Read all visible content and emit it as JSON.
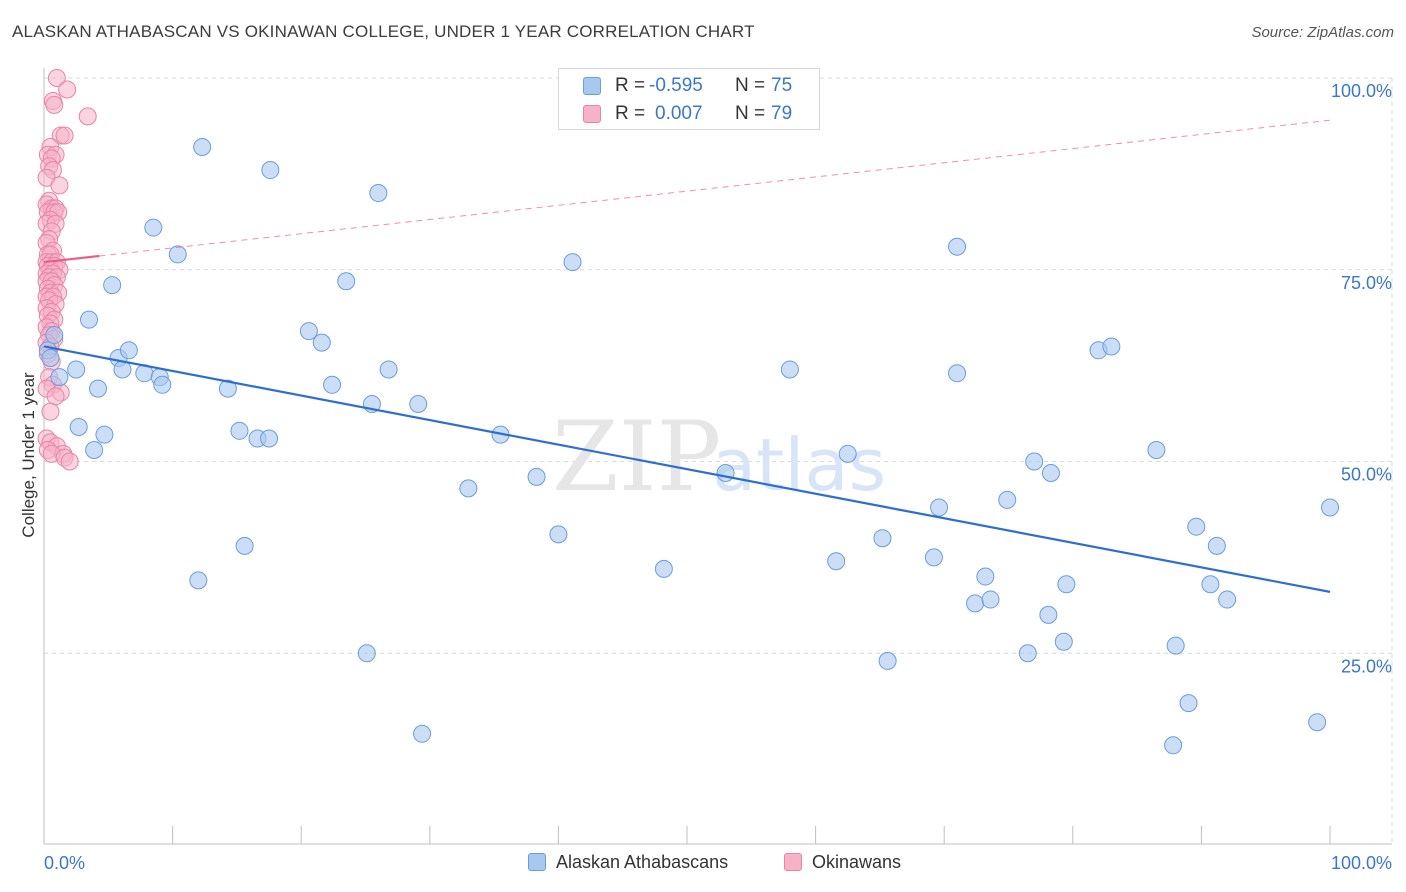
{
  "header": {
    "title": "ALASKAN ATHABASCAN VS OKINAWAN COLLEGE, UNDER 1 YEAR CORRELATION CHART",
    "source": "Source: ZipAtlas.com"
  },
  "legend": {
    "rows": [
      {
        "r_label": "R =",
        "r_value": "-0.595",
        "n_label": "N =",
        "n_value": "75"
      },
      {
        "r_label": "R =",
        "r_value": "0.007",
        "n_label": "N =",
        "n_value": "79"
      }
    ]
  },
  "watermark": {
    "zip": "ZIP",
    "atlas": "atlas"
  },
  "colors": {
    "blue_fill": "#a9c8f0",
    "blue_stroke": "#6b9ddc",
    "blue_line": "#2d6fcf",
    "pink_fill": "#f6b3c8",
    "pink_stroke": "#e884a5",
    "pink_line": "#e8608a",
    "axis_text": "#3b77c9",
    "grid": "#d9d9d9"
  },
  "chart_data": {
    "type": "scatter",
    "title": "ALASKAN ATHABASCAN VS OKINAWAN COLLEGE, UNDER 1 YEAR CORRELATION CHART",
    "xlabel": "",
    "ylabel": "College, Under 1 year",
    "xlim": [
      0,
      100
    ],
    "ylim": [
      0,
      102
    ],
    "x_tick_labels": [
      "0.0%",
      "100.0%"
    ],
    "y_ticks": [
      25,
      50,
      75,
      100
    ],
    "y_tick_labels": [
      "25.0%",
      "50.0%",
      "75.0%",
      "100.0%"
    ],
    "grid": true,
    "series": [
      {
        "name": "Alaskan Athabascans",
        "color": "#a9c8f0",
        "r": -0.595,
        "n": 75,
        "trend": {
          "x": [
            0,
            100
          ],
          "y": [
            65,
            33
          ]
        },
        "points": [
          [
            0.3,
            64.5
          ],
          [
            0.5,
            63.5
          ],
          [
            0.8,
            66.5
          ],
          [
            1.2,
            61
          ],
          [
            2.5,
            62
          ],
          [
            2.7,
            54.5
          ],
          [
            3.5,
            68.5
          ],
          [
            3.9,
            51.5
          ],
          [
            4.2,
            59.5
          ],
          [
            4.7,
            53.5
          ],
          [
            5.3,
            73
          ],
          [
            5.8,
            63.5
          ],
          [
            6.1,
            62
          ],
          [
            6.6,
            64.5
          ],
          [
            7.8,
            61.5
          ],
          [
            8.5,
            80.5
          ],
          [
            9.0,
            61
          ],
          [
            9.2,
            60
          ],
          [
            10.4,
            77
          ],
          [
            12.3,
            91
          ],
          [
            12.0,
            34.5
          ],
          [
            14.3,
            59.5
          ],
          [
            15.2,
            54
          ],
          [
            15.6,
            39
          ],
          [
            16.6,
            53
          ],
          [
            17.5,
            53
          ],
          [
            17.6,
            88
          ],
          [
            20.6,
            67
          ],
          [
            21.6,
            65.5
          ],
          [
            22.4,
            60
          ],
          [
            23.5,
            73.5
          ],
          [
            25.1,
            25
          ],
          [
            25.5,
            57.5
          ],
          [
            26.0,
            85
          ],
          [
            26.8,
            62
          ],
          [
            29.1,
            57.5
          ],
          [
            29.4,
            14.5
          ],
          [
            33.0,
            46.5
          ],
          [
            35.5,
            53.5
          ],
          [
            38.3,
            48
          ],
          [
            40.0,
            40.5
          ],
          [
            41.1,
            76
          ],
          [
            48.2,
            36
          ],
          [
            53.0,
            48.5
          ],
          [
            58.0,
            62
          ],
          [
            61.6,
            37
          ],
          [
            62.5,
            51
          ],
          [
            65.2,
            40
          ],
          [
            65.6,
            24
          ],
          [
            69.2,
            37.5
          ],
          [
            69.6,
            44
          ],
          [
            71.0,
            61.5
          ],
          [
            71.0,
            78
          ],
          [
            72.4,
            31.5
          ],
          [
            73.2,
            35
          ],
          [
            73.6,
            32
          ],
          [
            74.9,
            45
          ],
          [
            76.5,
            25
          ],
          [
            77.0,
            50
          ],
          [
            78.1,
            30
          ],
          [
            78.3,
            48.5
          ],
          [
            79.3,
            26.5
          ],
          [
            79.5,
            34
          ],
          [
            82.0,
            64.5
          ],
          [
            83.0,
            65
          ],
          [
            86.5,
            51.5
          ],
          [
            87.8,
            13
          ],
          [
            88.0,
            26
          ],
          [
            89.0,
            18.5
          ],
          [
            89.6,
            41.5
          ],
          [
            90.7,
            34
          ],
          [
            91.2,
            39
          ],
          [
            92.0,
            32
          ],
          [
            99.0,
            16
          ],
          [
            100.0,
            44
          ]
        ]
      },
      {
        "name": "Okinawans",
        "color": "#f6b3c8",
        "r": 0.007,
        "n": 79,
        "trend": {
          "x": [
            0,
            100
          ],
          "y": [
            76,
            94.5
          ]
        },
        "points": [
          [
            1.0,
            100
          ],
          [
            0.7,
            97
          ],
          [
            1.8,
            98.5
          ],
          [
            0.8,
            96.5
          ],
          [
            3.4,
            95
          ],
          [
            1.3,
            92.5
          ],
          [
            1.6,
            92.5
          ],
          [
            0.5,
            91
          ],
          [
            0.3,
            90
          ],
          [
            0.9,
            90
          ],
          [
            0.6,
            89.5
          ],
          [
            0.4,
            88.5
          ],
          [
            0.7,
            88
          ],
          [
            0.2,
            87
          ],
          [
            1.2,
            86
          ],
          [
            0.4,
            84
          ],
          [
            0.2,
            83.5
          ],
          [
            0.6,
            83
          ],
          [
            0.9,
            83
          ],
          [
            0.3,
            82.5
          ],
          [
            0.8,
            82.5
          ],
          [
            1.1,
            82.5
          ],
          [
            0.5,
            81.5
          ],
          [
            0.2,
            81
          ],
          [
            0.9,
            81
          ],
          [
            0.6,
            80
          ],
          [
            0.4,
            79
          ],
          [
            0.2,
            78.5
          ],
          [
            0.7,
            77.5
          ],
          [
            0.3,
            77
          ],
          [
            0.5,
            77
          ],
          [
            0.2,
            76
          ],
          [
            0.6,
            76
          ],
          [
            1.0,
            76
          ],
          [
            0.3,
            75.5
          ],
          [
            0.8,
            75.5
          ],
          [
            0.5,
            75
          ],
          [
            1.2,
            75
          ],
          [
            0.2,
            74.5
          ],
          [
            0.7,
            74.5
          ],
          [
            0.4,
            74
          ],
          [
            1.0,
            74
          ],
          [
            0.2,
            73.5
          ],
          [
            0.6,
            73.5
          ],
          [
            0.8,
            73
          ],
          [
            0.3,
            72.5
          ],
          [
            0.5,
            72
          ],
          [
            1.1,
            72
          ],
          [
            0.2,
            71.5
          ],
          [
            0.7,
            71.5
          ],
          [
            0.4,
            71
          ],
          [
            0.9,
            70.5
          ],
          [
            0.2,
            70
          ],
          [
            0.6,
            69.5
          ],
          [
            0.3,
            69
          ],
          [
            0.8,
            68.5
          ],
          [
            0.5,
            68
          ],
          [
            0.2,
            67.5
          ],
          [
            0.6,
            67
          ],
          [
            0.4,
            66.5
          ],
          [
            0.8,
            66
          ],
          [
            0.2,
            65.5
          ],
          [
            0.5,
            65
          ],
          [
            0.3,
            64
          ],
          [
            0.6,
            63
          ],
          [
            0.4,
            61
          ],
          [
            0.7,
            60
          ],
          [
            0.2,
            59.5
          ],
          [
            1.3,
            59
          ],
          [
            0.9,
            58.5
          ],
          [
            0.5,
            56.5
          ],
          [
            0.2,
            53
          ],
          [
            0.5,
            52.5
          ],
          [
            1.0,
            52
          ],
          [
            0.3,
            51.5
          ],
          [
            1.5,
            51
          ],
          [
            0.6,
            51
          ],
          [
            1.6,
            50.5
          ],
          [
            2.0,
            50
          ]
        ]
      }
    ]
  }
}
